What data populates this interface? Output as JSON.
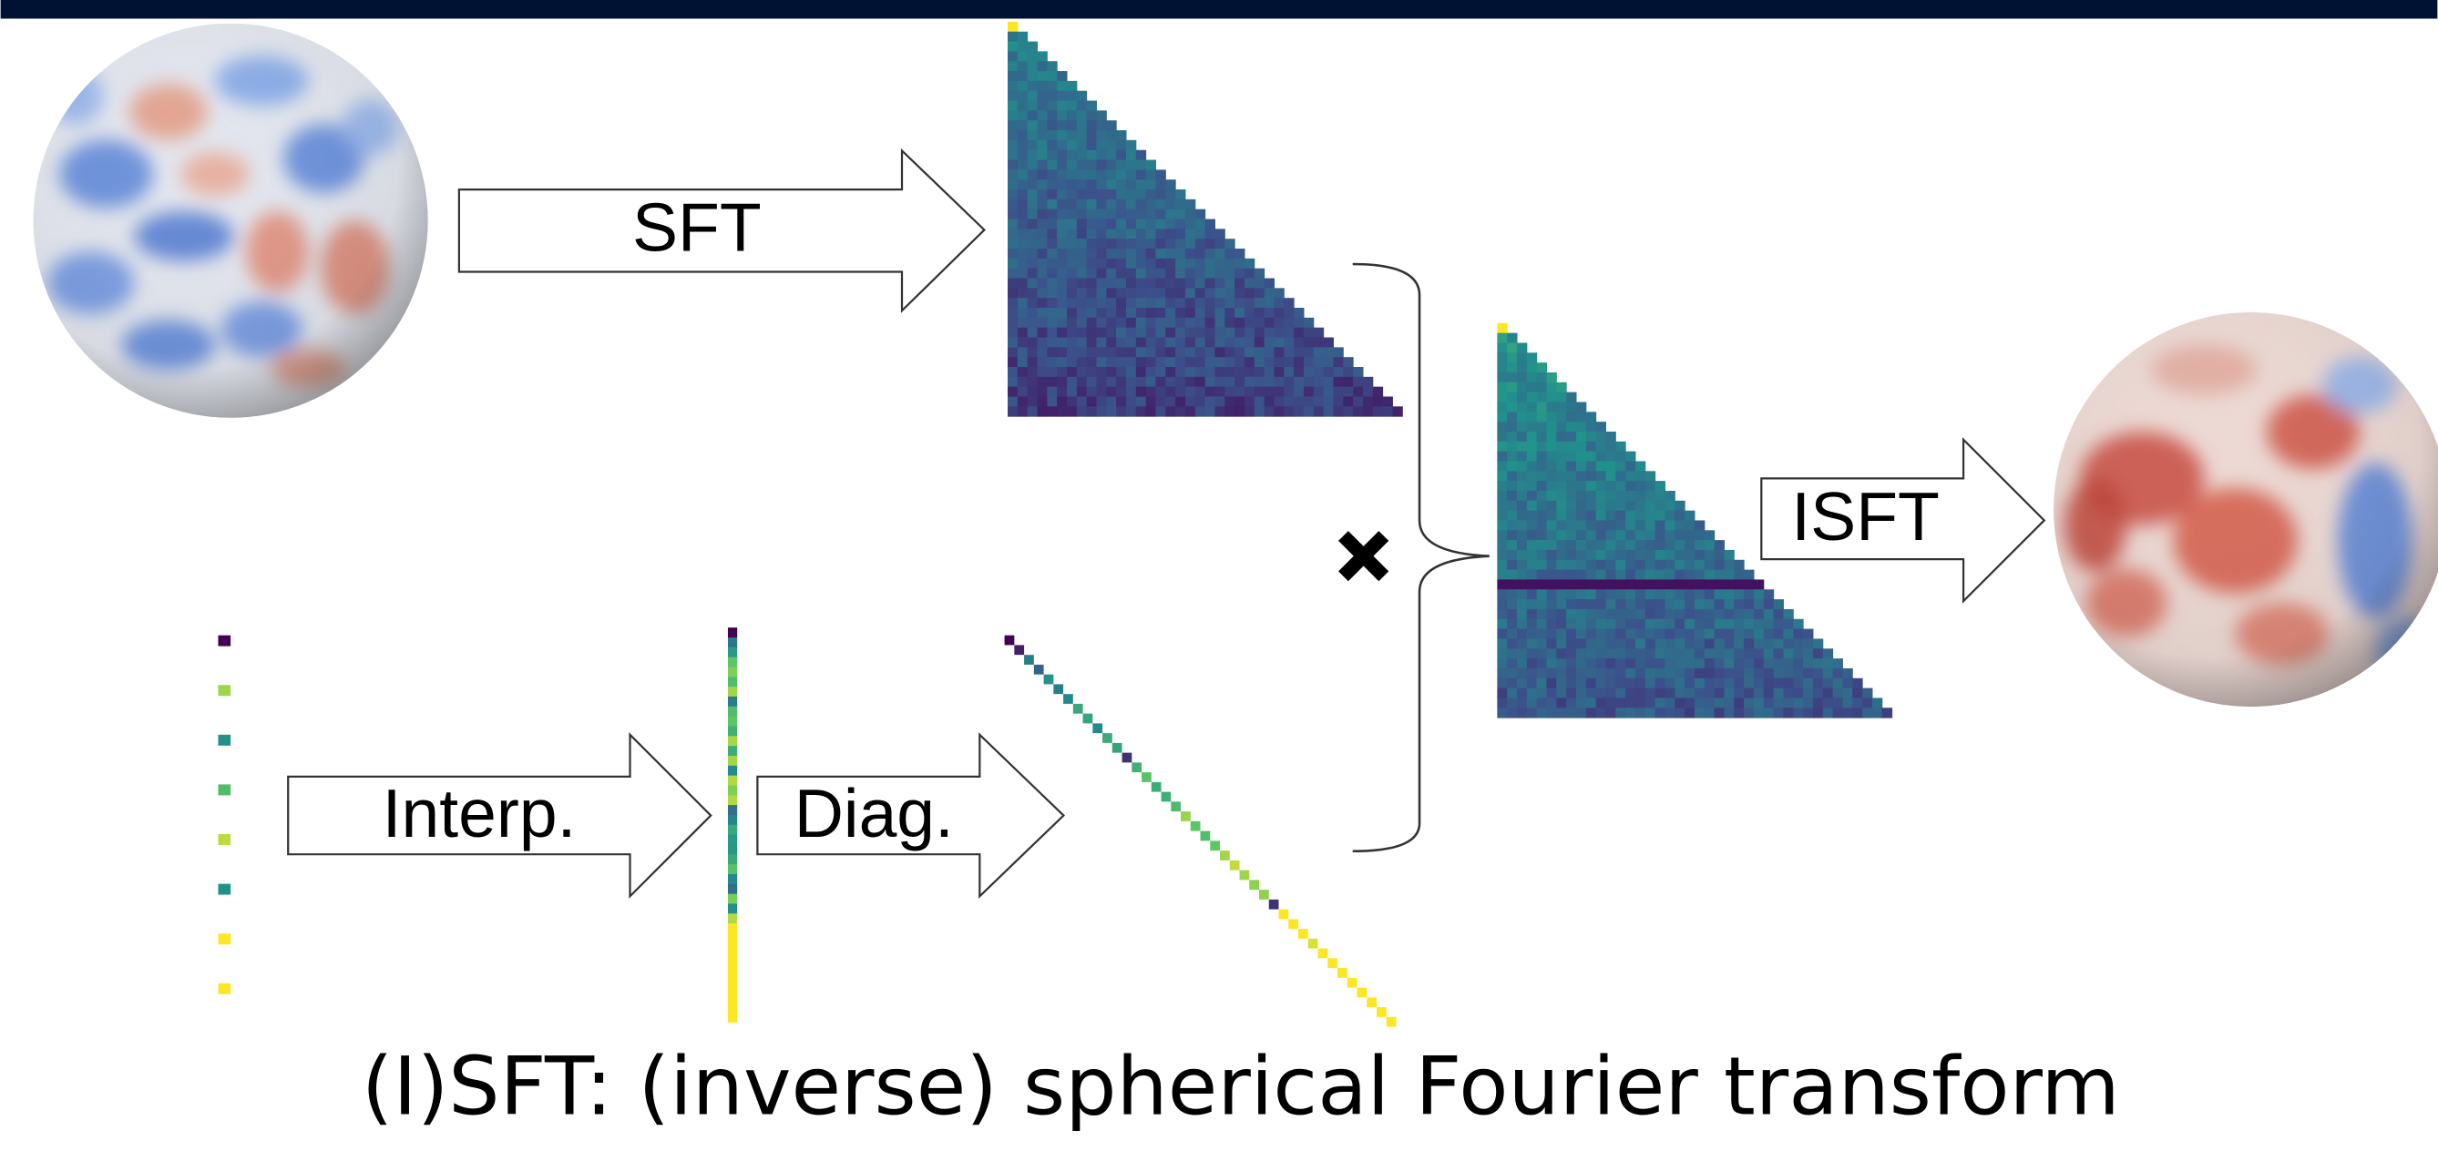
{
  "labels": {
    "sft": "SFT",
    "isft": "ISFT",
    "interp": "Interp.",
    "diag": "Diag."
  },
  "caption": "(I)SFT: (inverse) spherical Fourier transform"
}
